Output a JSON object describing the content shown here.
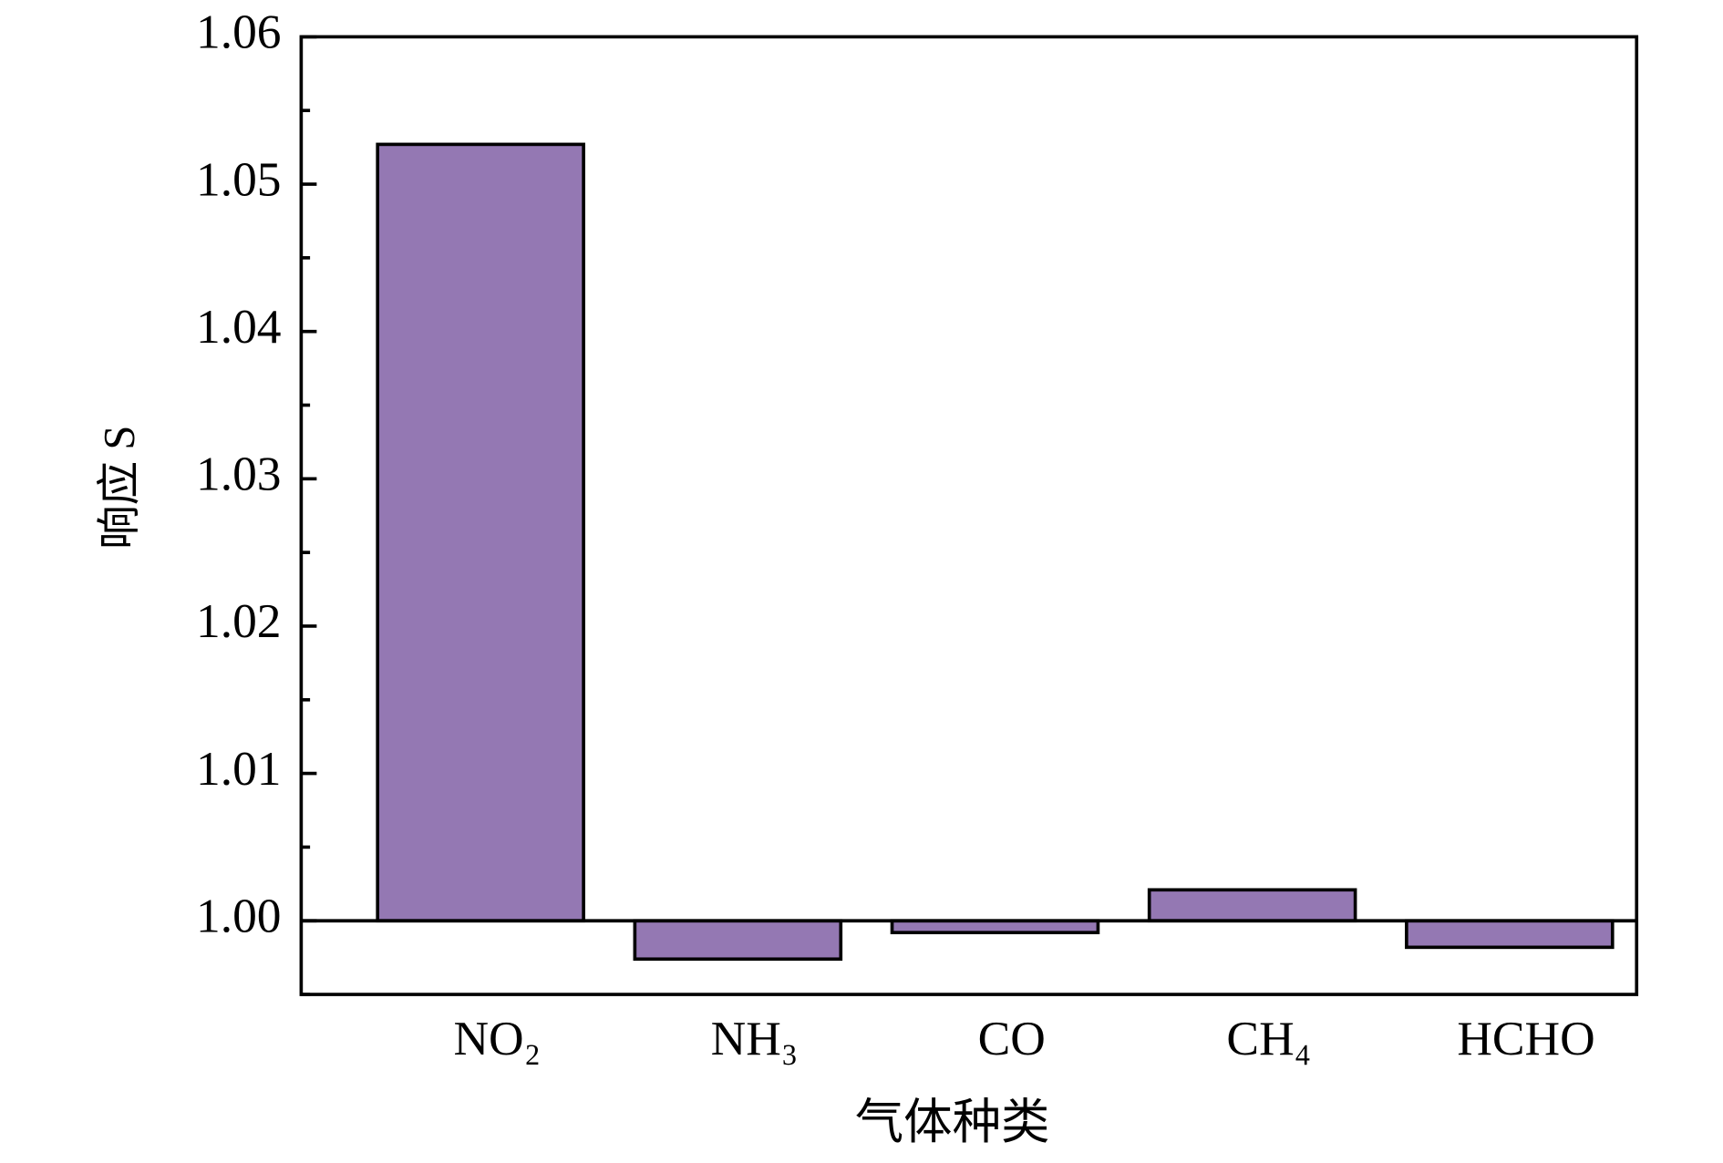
{
  "chart_data": {
    "type": "bar",
    "x_label": "气体种类",
    "y_label": "响应 S",
    "categories": [
      "NO₂",
      "NH₃",
      "CO",
      "CH₄",
      "HCHO"
    ],
    "values": [
      1.0527,
      0.9974,
      0.9992,
      1.0021,
      0.9982
    ],
    "color": "#9478b3",
    "baseline": 1,
    "ylim": [
      0.995,
      1.06
    ],
    "yticks": [
      {
        "value": 1,
        "label": "1.00"
      },
      {
        "value": 1.01,
        "label": "1.01"
      },
      {
        "value": 1.02,
        "label": "1.02"
      },
      {
        "value": 1.03,
        "label": "1.03"
      },
      {
        "value": 1.04,
        "label": "1.04"
      },
      {
        "value": 1.05,
        "label": "1.05"
      },
      {
        "value": 1.06,
        "label": "1.06"
      }
    ],
    "grid": false
  }
}
